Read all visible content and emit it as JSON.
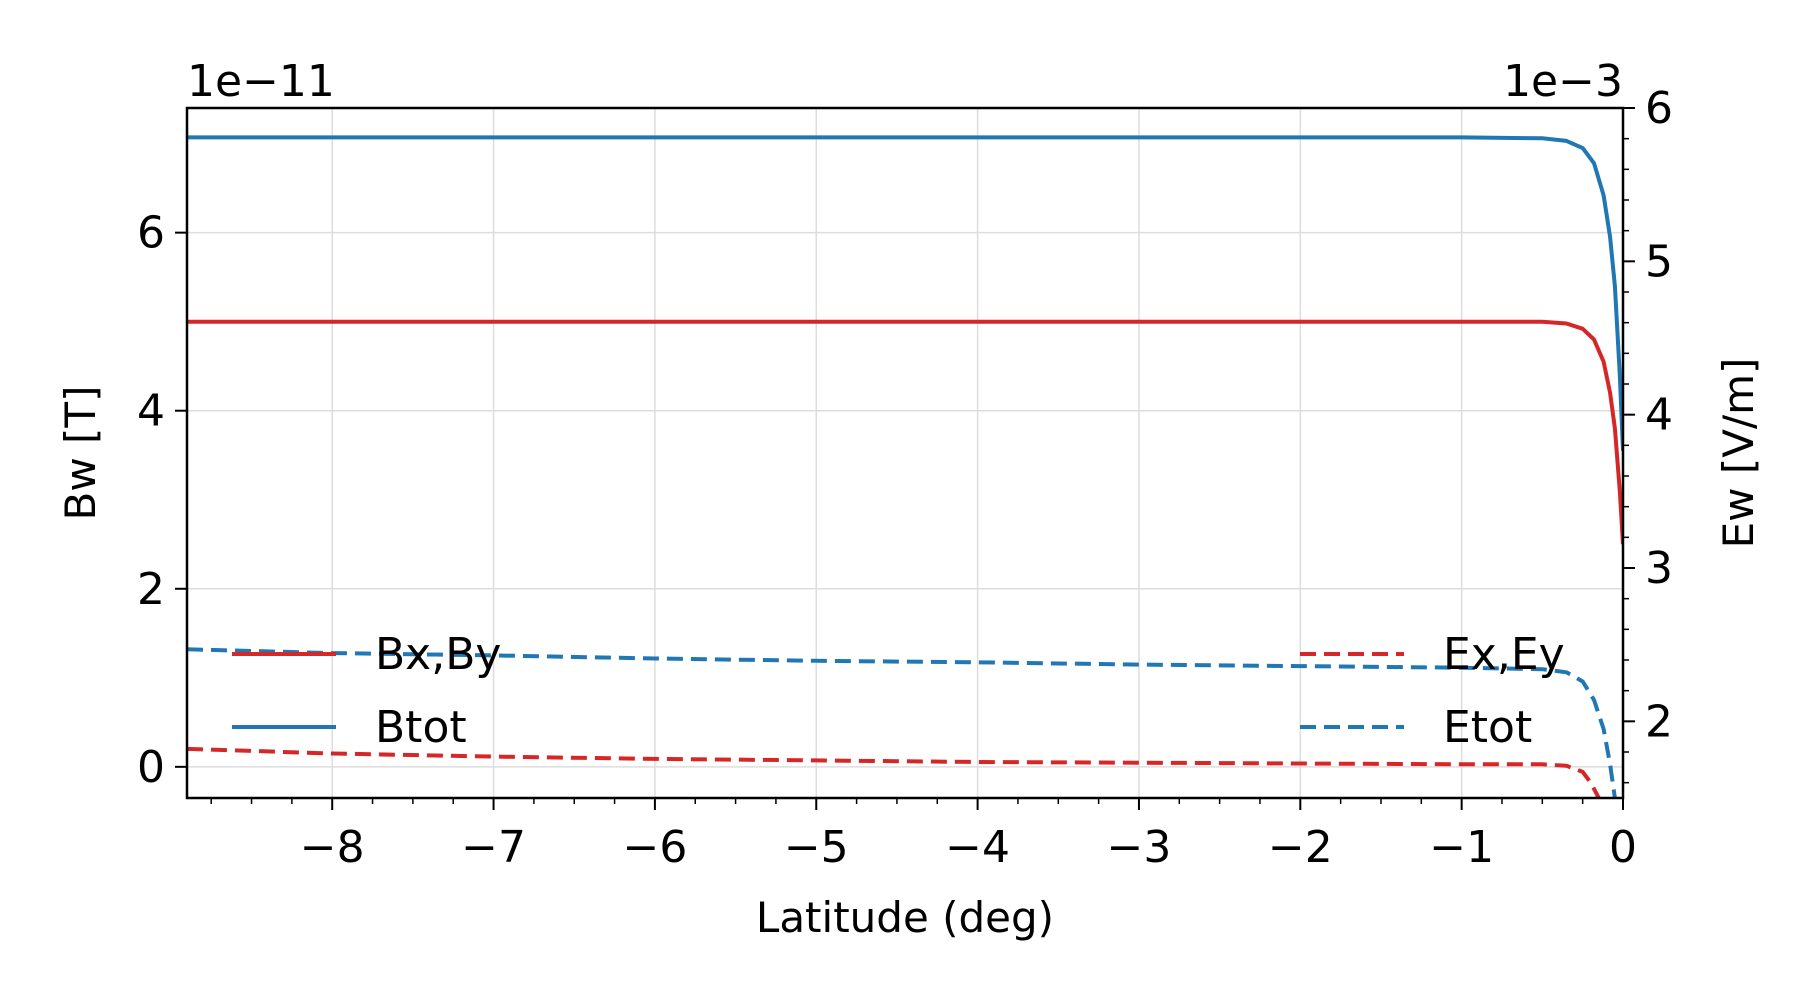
{
  "chart_data": {
    "type": "line",
    "xlabel": "Latitude (deg)",
    "ylabel_left": "Bw [T]",
    "ylabel_right": "Ew [V/m]",
    "left_offset_text": "1e−11",
    "right_offset_text": "1e−3",
    "xlim": [
      -8.9,
      0
    ],
    "ylim_left": [
      -0.35,
      7.4
    ],
    "ylim_right": [
      1.5,
      6.0
    ],
    "grid": true,
    "x_ticks": [
      -8,
      -7,
      -6,
      -5,
      -4,
      -3,
      -2,
      -1,
      0
    ],
    "x_tick_labels": [
      "−8",
      "−7",
      "−6",
      "−5",
      "−4",
      "−3",
      "−2",
      "−1",
      "0"
    ],
    "y_left_ticks": [
      0,
      2,
      4,
      6
    ],
    "y_left_tick_labels": [
      "0",
      "2",
      "4",
      "6"
    ],
    "y_right_ticks": [
      2,
      3,
      4,
      5,
      6
    ],
    "y_right_tick_labels": [
      "2",
      "3",
      "4",
      "5",
      "6"
    ],
    "legend_left_placement": "lower-left",
    "legend_right_placement": "lower-right",
    "series": [
      {
        "name": "Bx,By",
        "axis": "left",
        "color": "#d62728",
        "dash": "solid",
        "x": [
          -8.9,
          -2,
          -1,
          -0.5,
          -0.35,
          -0.25,
          -0.18,
          -0.12,
          -0.08,
          -0.05,
          -0.02,
          0
        ],
        "y": [
          5.0,
          5.0,
          5.0,
          5.0,
          4.98,
          4.92,
          4.8,
          4.55,
          4.2,
          3.8,
          3.1,
          2.5
        ]
      },
      {
        "name": "Btot",
        "axis": "left",
        "color": "#1f77b4",
        "dash": "solid",
        "x": [
          -8.9,
          -2,
          -1,
          -0.5,
          -0.35,
          -0.25,
          -0.18,
          -0.12,
          -0.08,
          -0.05,
          -0.02,
          0
        ],
        "y": [
          7.07,
          7.07,
          7.07,
          7.06,
          7.03,
          6.95,
          6.78,
          6.42,
          5.95,
          5.4,
          4.4,
          3.55
        ]
      },
      {
        "name": "Ex,Ey",
        "axis": "right",
        "color": "#d62728",
        "dash": "dashed",
        "x": [
          -8.9,
          -8,
          -7,
          -6,
          -5,
          -4,
          -3,
          -2,
          -1,
          -0.5,
          -0.35,
          -0.25,
          -0.2,
          -0.16,
          -0.14
        ],
        "y": [
          1.82,
          1.79,
          1.77,
          1.755,
          1.745,
          1.735,
          1.73,
          1.725,
          1.72,
          1.72,
          1.71,
          1.67,
          1.6,
          1.52,
          1.48
        ]
      },
      {
        "name": "Etot",
        "axis": "right",
        "color": "#1f77b4",
        "dash": "dashed",
        "x": [
          -8.9,
          -8,
          -7,
          -6,
          -5,
          -4,
          -3,
          -2,
          -1,
          -0.5,
          -0.35,
          -0.25,
          -0.18,
          -0.12,
          -0.08,
          -0.05
        ],
        "y": [
          2.47,
          2.445,
          2.43,
          2.41,
          2.395,
          2.385,
          2.37,
          2.36,
          2.35,
          2.34,
          2.32,
          2.26,
          2.14,
          1.95,
          1.72,
          1.5
        ]
      }
    ]
  }
}
